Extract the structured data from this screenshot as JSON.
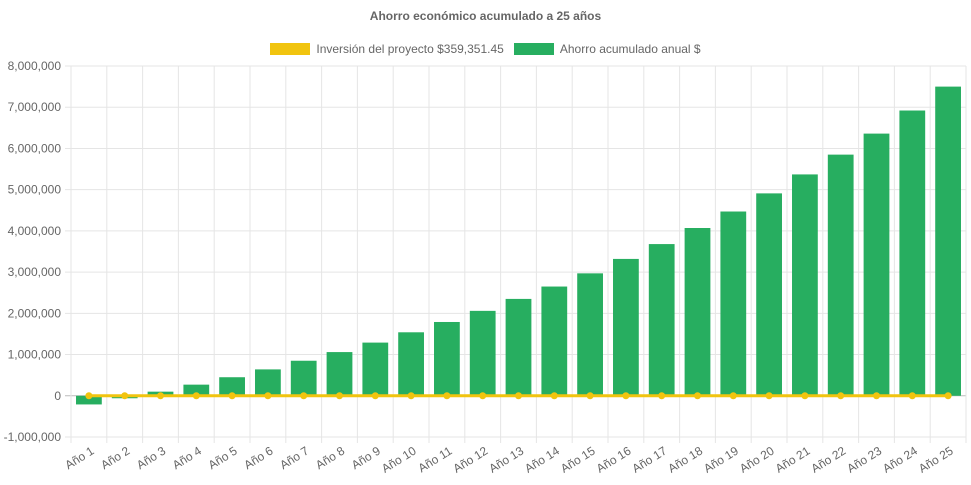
{
  "chart_data": {
    "type": "bar",
    "title": "Ahorro económico acumulado a 25 años",
    "xlabel": "",
    "ylabel": "",
    "categories": [
      "Año 1",
      "Año 2",
      "Año 3",
      "Año 4",
      "Año 5",
      "Año 6",
      "Año 7",
      "Año 8",
      "Año 9",
      "Año 10",
      "Año 11",
      "Año 12",
      "Año 13",
      "Año 14",
      "Año 15",
      "Año 16",
      "Año 17",
      "Año 18",
      "Año 19",
      "Año 20",
      "Año 21",
      "Año 22",
      "Año 23",
      "Año 24",
      "Año 25"
    ],
    "series": [
      {
        "name": "Inversión del proyecto $359,351.45",
        "type": "line",
        "color": "#f1c40f",
        "values": [
          0,
          0,
          0,
          0,
          0,
          0,
          0,
          0,
          0,
          0,
          0,
          0,
          0,
          0,
          0,
          0,
          0,
          0,
          0,
          0,
          0,
          0,
          0,
          0,
          0
        ]
      },
      {
        "name": "Ahorro acumulado anual $",
        "type": "bar",
        "color": "#27ae60",
        "values": [
          -210000,
          -60000,
          100000,
          270000,
          450000,
          640000,
          850000,
          1060000,
          1290000,
          1540000,
          1790000,
          2060000,
          2350000,
          2650000,
          2970000,
          3320000,
          3680000,
          4070000,
          4470000,
          4910000,
          5370000,
          5850000,
          6360000,
          6920000,
          7500000
        ]
      }
    ],
    "ylim": [
      -1000000,
      8000000
    ],
    "yticks": [
      "-1,000,000",
      "0",
      "1,000,000",
      "2,000,000",
      "3,000,000",
      "4,000,000",
      "5,000,000",
      "6,000,000",
      "7,000,000",
      "8,000,000"
    ],
    "ytick_values": [
      -1000000,
      0,
      1000000,
      2000000,
      3000000,
      4000000,
      5000000,
      6000000,
      7000000,
      8000000
    ],
    "grid": true,
    "legend": "top-center"
  }
}
